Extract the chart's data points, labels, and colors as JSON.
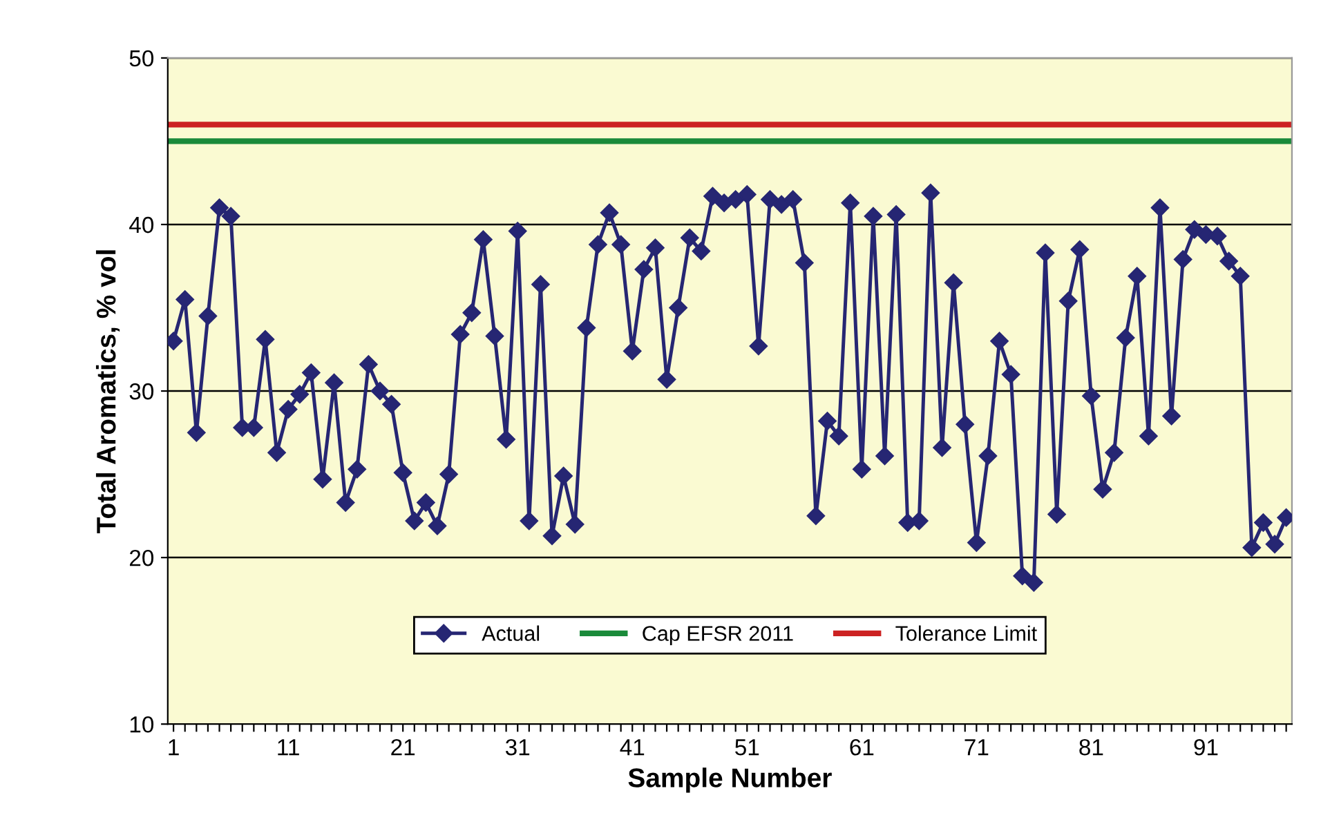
{
  "chart_data": {
    "type": "line",
    "xlabel": "Sample Number",
    "ylabel": "Total Aromatics, % vol",
    "categories": [
      "1",
      null,
      null,
      null,
      null,
      null,
      null,
      null,
      null,
      null,
      "11",
      null,
      null,
      null,
      null,
      null,
      null,
      null,
      null,
      null,
      "21",
      null,
      null,
      null,
      null,
      null,
      null,
      null,
      null,
      null,
      "31",
      null,
      null,
      null,
      null,
      null,
      null,
      null,
      null,
      null,
      "41",
      null,
      null,
      null,
      null,
      null,
      null,
      null,
      null,
      null,
      "51",
      null,
      null,
      null,
      null,
      null,
      null,
      null,
      null,
      null,
      "61",
      null,
      null,
      null,
      null,
      null,
      null,
      null,
      null,
      null,
      "71",
      null,
      null,
      null,
      null,
      null,
      null,
      null,
      null,
      null,
      "81",
      null,
      null,
      null,
      null,
      null,
      null,
      null,
      null,
      null,
      "91",
      null,
      null,
      null,
      null,
      null,
      null,
      null
    ],
    "series": [
      {
        "name": "Actual",
        "color": "#262673",
        "values": [
          33.0,
          35.5,
          27.5,
          34.5,
          41.0,
          40.5,
          27.8,
          27.8,
          33.1,
          26.3,
          28.9,
          29.8,
          31.1,
          24.7,
          30.5,
          23.3,
          25.3,
          31.6,
          30.0,
          29.2,
          25.1,
          22.2,
          23.3,
          21.9,
          25.0,
          33.4,
          34.7,
          39.1,
          33.3,
          27.1,
          39.6,
          22.2,
          36.4,
          21.3,
          24.9,
          22.0,
          33.8,
          38.8,
          40.7,
          38.8,
          32.4,
          37.3,
          38.6,
          30.7,
          35.0,
          39.2,
          38.4,
          41.7,
          41.3,
          41.5,
          41.8,
          32.7,
          41.5,
          41.2,
          41.5,
          37.7,
          22.5,
          28.2,
          27.3,
          41.3,
          25.3,
          40.5,
          26.1,
          40.6,
          22.1,
          22.2,
          41.9,
          26.6,
          36.5,
          28.0,
          20.9,
          26.1,
          33.0,
          31.0,
          18.9,
          18.5,
          38.3,
          22.6,
          35.4,
          38.5,
          29.7,
          24.1,
          26.3,
          33.2,
          36.9,
          27.3,
          41.0,
          28.5,
          37.9,
          39.7,
          39.4,
          39.3,
          37.8,
          36.9,
          20.6,
          22.1,
          20.8,
          22.4
        ]
      }
    ],
    "ref_lines": [
      {
        "axis": "y",
        "value": 45,
        "label": "Cap EFSR 2011",
        "color": "#1a8a3a"
      },
      {
        "axis": "y",
        "value": 46,
        "label": "Tolerance Limit",
        "color": "#cc2222"
      }
    ],
    "ylim": [
      10,
      50
    ],
    "yticks": [
      10,
      20,
      30,
      40,
      50
    ],
    "grid": "y",
    "marker": "diamond",
    "line_style": "solid",
    "legend": "bottom"
  }
}
